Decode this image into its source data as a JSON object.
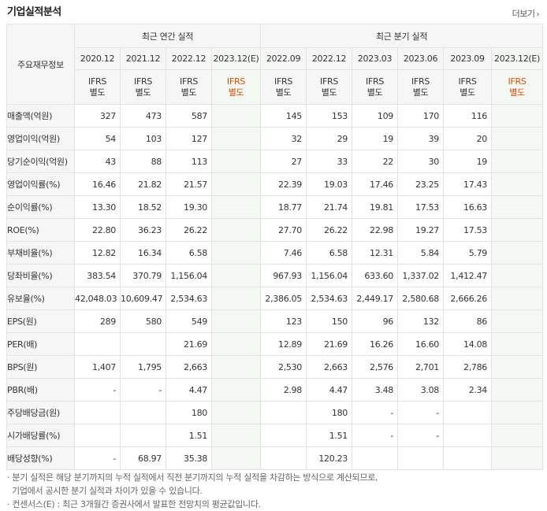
{
  "title": "기업실적분석",
  "more_label": "더보기",
  "header": {
    "row_label": "주요재무정보",
    "annual_group": "최근 연간 실적",
    "quarter_group": "최근 분기 실적",
    "annual_periods": [
      "2020.12",
      "2021.12",
      "2022.12",
      "2023.12(E)"
    ],
    "quarter_periods": [
      "2022.09",
      "2022.12",
      "2023.03",
      "2023.06",
      "2023.09",
      "2023.12(E)"
    ],
    "standard_line1": "IFRS",
    "standard_line2": "별도"
  },
  "rows": [
    {
      "label": "매출액(억원)",
      "values": [
        "327",
        "473",
        "587",
        "",
        "145",
        "153",
        "109",
        "170",
        "116",
        ""
      ]
    },
    {
      "label": "영업이익(억원)",
      "values": [
        "54",
        "103",
        "127",
        "",
        "32",
        "29",
        "19",
        "39",
        "20",
        ""
      ]
    },
    {
      "label": "당기순이익(억원)",
      "values": [
        "43",
        "88",
        "113",
        "",
        "27",
        "33",
        "22",
        "30",
        "19",
        ""
      ]
    },
    {
      "label": "영업이익률(%)",
      "values": [
        "16.46",
        "21.82",
        "21.57",
        "",
        "22.39",
        "19.03",
        "17.46",
        "23.25",
        "17.43",
        ""
      ]
    },
    {
      "label": "순이익률(%)",
      "values": [
        "13.30",
        "18.52",
        "19.30",
        "",
        "18.77",
        "21.74",
        "19.81",
        "17.53",
        "16.63",
        ""
      ]
    },
    {
      "label": "ROE(%)",
      "values": [
        "22.80",
        "36.23",
        "26.22",
        "",
        "27.70",
        "26.22",
        "22.98",
        "19.27",
        "17.53",
        ""
      ]
    },
    {
      "label": "부채비율(%)",
      "values": [
        "12.82",
        "16.34",
        "6.58",
        "",
        "7.46",
        "6.58",
        "12.31",
        "5.84",
        "5.79",
        ""
      ]
    },
    {
      "label": "당좌비율(%)",
      "values": [
        "383.54",
        "370.79",
        "1,156.04",
        "",
        "967.93",
        "1,156.04",
        "633.60",
        "1,337.02",
        "1,412.47",
        ""
      ]
    },
    {
      "label": "유보율(%)",
      "values": [
        "42,048.03",
        "10,609.47",
        "2,534.63",
        "",
        "2,386.05",
        "2,534.63",
        "2,449.17",
        "2,580.68",
        "2,666.26",
        ""
      ]
    },
    {
      "label": "EPS(원)",
      "values": [
        "289",
        "580",
        "549",
        "",
        "123",
        "150",
        "96",
        "132",
        "86",
        ""
      ]
    },
    {
      "label": "PER(배)",
      "values": [
        "",
        "",
        "21.69",
        "",
        "12.89",
        "21.69",
        "16.26",
        "16.60",
        "14.08",
        ""
      ]
    },
    {
      "label": "BPS(원)",
      "values": [
        "1,407",
        "1,795",
        "2,663",
        "",
        "2,530",
        "2,663",
        "2,576",
        "2,701",
        "2,786",
        ""
      ]
    },
    {
      "label": "PBR(배)",
      "values": [
        "-",
        "-",
        "4.47",
        "",
        "2.98",
        "4.47",
        "3.48",
        "3.08",
        "2.34",
        ""
      ]
    },
    {
      "label": "주당배당금(원)",
      "values": [
        "",
        "",
        "180",
        "",
        "",
        "180",
        "-",
        "-",
        "",
        ""
      ]
    },
    {
      "label": "시가배당률(%)",
      "values": [
        "",
        "",
        "1.51",
        "",
        "",
        "1.51",
        "-",
        "-",
        "",
        ""
      ]
    },
    {
      "label": "배당성향(%)",
      "values": [
        "-",
        "68.97",
        "35.38",
        "",
        "",
        "120.23",
        "",
        "",
        "",
        ""
      ]
    }
  ],
  "notes": [
    "· 분기 실적은 해당 분기까지의 누적 실적에서 직전 분기까지의 누적 실적을 차감하는 방식으로 계산되므로,",
    "  기업에서 공시한 분기 실적과 차이가 있을 수 있습니다.",
    "· 컨센서스(E) : 최근 3개월간 증권사에서 발표한 전망치의 평균값입니다."
  ]
}
